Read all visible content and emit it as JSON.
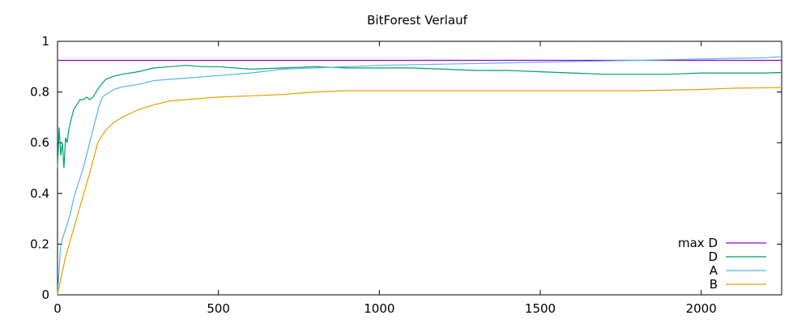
{
  "chart_data": {
    "type": "line",
    "title": "BitForest Verlauf",
    "xlabel": "",
    "ylabel": "",
    "xlim": [
      0,
      2250
    ],
    "ylim": [
      0,
      1
    ],
    "x_ticks": [
      0,
      500,
      1000,
      1500,
      2000
    ],
    "y_ticks": [
      0,
      0.2,
      0.4,
      0.6,
      0.8,
      1
    ],
    "x_tick_labels": [
      "0",
      "500",
      "1000",
      "1500",
      "2000"
    ],
    "y_tick_labels": [
      "0",
      "0.2",
      "0.4",
      "0.6",
      "0.8",
      "1"
    ],
    "grid": false,
    "legend_position": "bottom-right",
    "series": [
      {
        "name": "max D",
        "color": "#9400d3",
        "x": [
          0,
          2250
        ],
        "y": [
          0.925,
          0.925
        ]
      },
      {
        "name": "D",
        "color": "#009e73",
        "x": [
          0,
          5,
          10,
          15,
          20,
          25,
          30,
          35,
          40,
          50,
          60,
          70,
          80,
          90,
          100,
          110,
          120,
          130,
          150,
          170,
          200,
          250,
          300,
          350,
          400,
          450,
          500,
          600,
          700,
          800,
          900,
          1000,
          1100,
          1200,
          1300,
          1400,
          1500,
          1600,
          1700,
          1800,
          1900,
          2000,
          2100,
          2200,
          2250
        ],
        "y": [
          0.5,
          0.66,
          0.55,
          0.6,
          0.5,
          0.62,
          0.6,
          0.65,
          0.68,
          0.73,
          0.75,
          0.77,
          0.77,
          0.78,
          0.77,
          0.78,
          0.8,
          0.82,
          0.85,
          0.86,
          0.87,
          0.88,
          0.895,
          0.9,
          0.905,
          0.9,
          0.9,
          0.89,
          0.895,
          0.9,
          0.895,
          0.895,
          0.895,
          0.89,
          0.885,
          0.885,
          0.88,
          0.875,
          0.87,
          0.87,
          0.87,
          0.875,
          0.875,
          0.875,
          0.877
        ]
      },
      {
        "name": "A",
        "color": "#56b4e9",
        "x": [
          0,
          10,
          20,
          30,
          40,
          50,
          60,
          70,
          80,
          90,
          100,
          110,
          120,
          130,
          140,
          150,
          175,
          200,
          250,
          300,
          350,
          400,
          450,
          500,
          600,
          700,
          800,
          900,
          1000,
          1200,
          1400,
          1600,
          1800,
          2000,
          2100,
          2200,
          2250
        ],
        "y": [
          0.0,
          0.2,
          0.24,
          0.28,
          0.32,
          0.38,
          0.42,
          0.46,
          0.5,
          0.55,
          0.6,
          0.65,
          0.7,
          0.75,
          0.78,
          0.79,
          0.81,
          0.82,
          0.83,
          0.845,
          0.85,
          0.855,
          0.86,
          0.865,
          0.875,
          0.89,
          0.895,
          0.9,
          0.905,
          0.91,
          0.915,
          0.92,
          0.925,
          0.93,
          0.933,
          0.935,
          0.94
        ]
      },
      {
        "name": "B",
        "color": "#e69f00",
        "x": [
          0,
          25,
          50,
          75,
          100,
          125,
          150,
          175,
          200,
          250,
          300,
          350,
          400,
          450,
          500,
          600,
          700,
          800,
          900,
          1000,
          1200,
          1400,
          1600,
          1800,
          2000,
          2100,
          2200,
          2250
        ],
        "y": [
          0.0,
          0.15,
          0.26,
          0.37,
          0.48,
          0.6,
          0.65,
          0.68,
          0.7,
          0.73,
          0.75,
          0.765,
          0.77,
          0.775,
          0.78,
          0.785,
          0.79,
          0.8,
          0.805,
          0.805,
          0.805,
          0.805,
          0.805,
          0.805,
          0.81,
          0.815,
          0.817,
          0.818
        ]
      }
    ]
  }
}
